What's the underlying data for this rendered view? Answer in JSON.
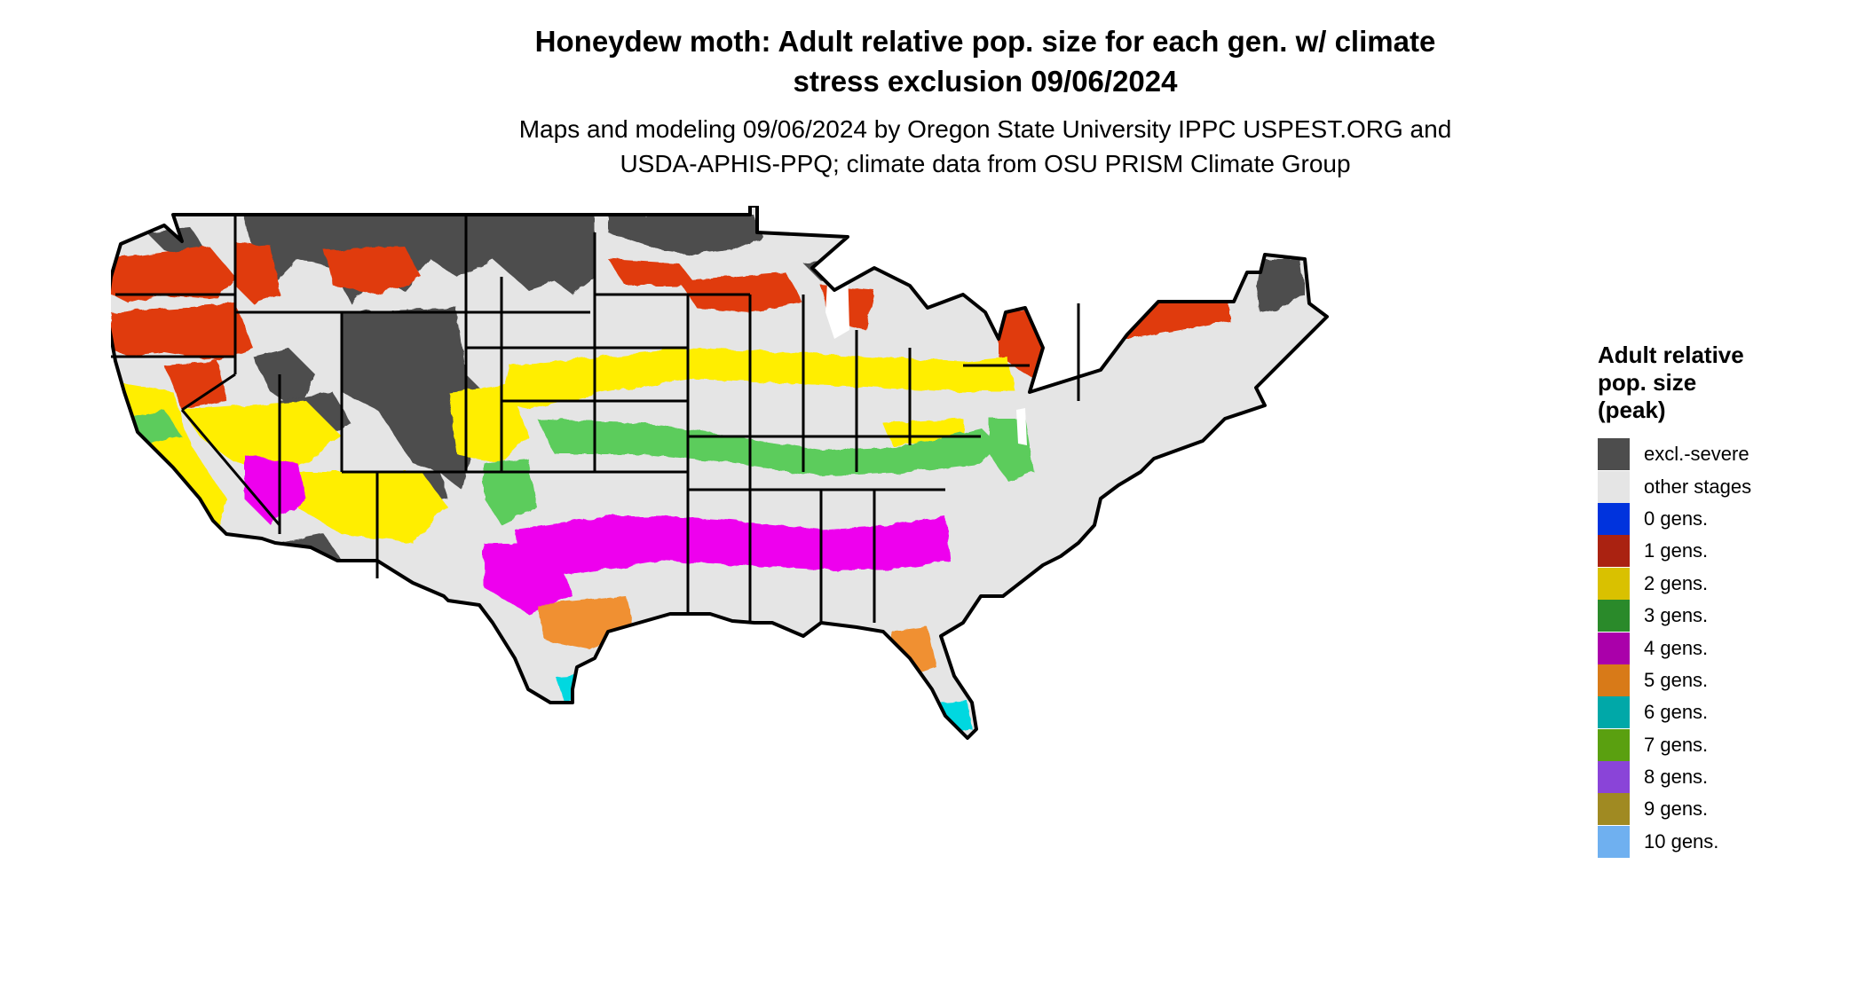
{
  "title_line1": "Honeydew moth: Adult relative pop. size for each gen. w/ climate",
  "title_line2": "stress exclusion 09/06/2024",
  "subtitle_line1": "Maps and modeling 09/06/2024 by Oregon State University IPPC USPEST.ORG and",
  "subtitle_line2": "USDA-APHIS-PPQ; climate data from OSU PRISM Climate Group",
  "legend": {
    "title_line1": "Adult relative",
    "title_line2": "pop. size",
    "title_line3": "(peak)",
    "items": [
      {
        "label": "excl.-severe",
        "color": "#4d4d4d"
      },
      {
        "label": "other stages",
        "color": "#e5e5e5"
      },
      {
        "label": "0 gens.",
        "color": "#0033dd"
      },
      {
        "label": "1 gens.",
        "color": "#aa2211"
      },
      {
        "label": "2 gens.",
        "color": "#d9c100"
      },
      {
        "label": "3 gens.",
        "color": "#2a8a2a"
      },
      {
        "label": "4 gens.",
        "color": "#aa00aa"
      },
      {
        "label": "5 gens.",
        "color": "#d87a18"
      },
      {
        "label": "6 gens.",
        "color": "#00a8a8"
      },
      {
        "label": "7 gens.",
        "color": "#5aa010"
      },
      {
        "label": "8 gens.",
        "color": "#8a44d8"
      },
      {
        "label": "9 gens.",
        "color": "#a08a22"
      },
      {
        "label": "10 gens.",
        "color": "#6fb0f0"
      }
    ]
  },
  "map_colors": {
    "land": "#e5e5e5",
    "excluded": "#4d4d4d",
    "one_gen_patch": "#e03a10",
    "two_gen_patch": "#ffee00",
    "three_gen_patch": "#5ccc5c",
    "four_gen_patch": "#ee00ee",
    "five_gen_patch": "#f09030",
    "six_gen_patch": "#00d8e0",
    "border": "#000000",
    "water": "#ffffff"
  }
}
